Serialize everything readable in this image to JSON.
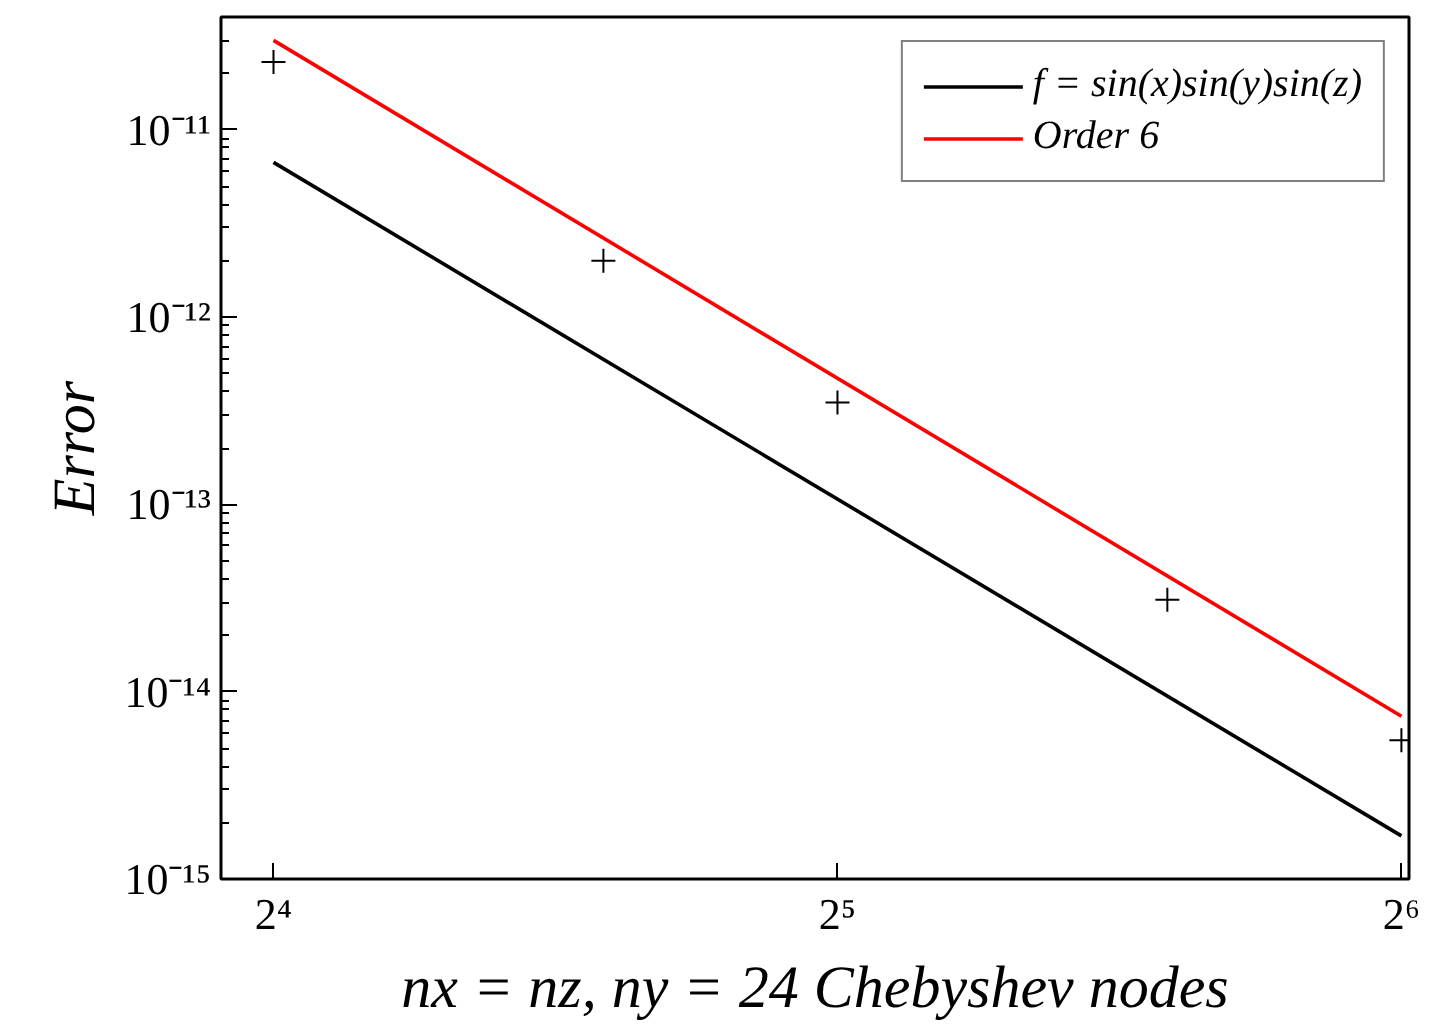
{
  "chart_data": {
    "type": "line",
    "xlabel": "nx = nz, ny = 24 Chebyshev nodes",
    "ylabel": "Error",
    "log": "xy",
    "grid": false,
    "legend": "top right",
    "xlim": [
      15,
      64.6
    ],
    "xticks": [
      {
        "value": 16,
        "label": "2⁴"
      },
      {
        "value": 32,
        "label": "2⁵"
      },
      {
        "value": 64,
        "label": "2⁶"
      }
    ],
    "ylim": [
      1e-15,
      4e-11
    ],
    "yticks": [
      {
        "value": 1e-15,
        "label": "10⁻¹⁵"
      },
      {
        "value": 1e-14,
        "label": "10⁻¹⁴"
      },
      {
        "value": 1e-13,
        "label": "10⁻¹³"
      },
      {
        "value": 1e-12,
        "label": "10⁻¹²"
      },
      {
        "value": 1e-11,
        "label": "10⁻¹¹"
      }
    ],
    "series": [
      {
        "type": "scatter",
        "marker": "cross",
        "color": "#000000",
        "x": [
          16,
          24,
          32,
          48,
          64
        ],
        "values": [
          2.3e-11,
          2e-12,
          3.5e-13,
          3.1e-14,
          5.5e-15
        ]
      },
      {
        "name": "f = sin(x)sin(y)sin(z)",
        "color": "#000000",
        "x": [
          16,
          64
        ],
        "values": [
          6.7e-12,
          1.7e-15
        ]
      },
      {
        "name": "Order 6",
        "color": "#ff0000",
        "x": [
          16,
          64
        ],
        "values": [
          3e-11,
          7.4e-15
        ]
      }
    ]
  }
}
